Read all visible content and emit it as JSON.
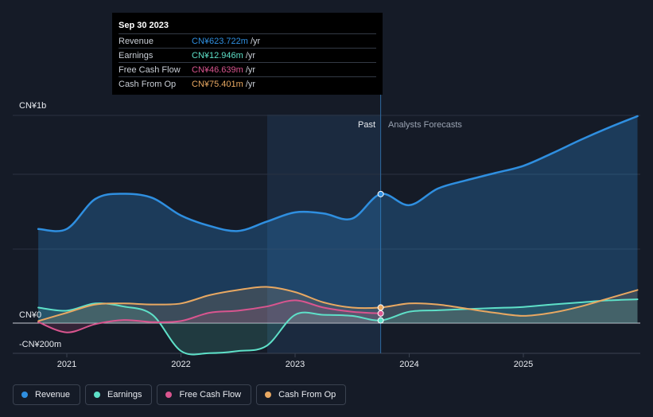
{
  "tooltip": {
    "date": "Sep 30 2023",
    "rows": [
      {
        "label": "Revenue",
        "value": "CN¥623.722m",
        "unit": "/yr",
        "color": "#2f8fe0"
      },
      {
        "label": "Earnings",
        "value": "CN¥12.946m",
        "unit": "/yr",
        "color": "#5ee0c8"
      },
      {
        "label": "Free Cash Flow",
        "value": "CN¥46.639m",
        "unit": "/yr",
        "color": "#d9558f"
      },
      {
        "label": "Cash From Op",
        "value": "CN¥75.401m",
        "unit": "/yr",
        "color": "#e8a862"
      }
    ]
  },
  "chart_data": {
    "type": "line",
    "y_axis_labels": {
      "top": "CN¥1b",
      "zero": "CN¥0",
      "bottom": "-CN¥200m"
    },
    "x_ticks": [
      "2021",
      "2022",
      "2023",
      "2024",
      "2025"
    ],
    "x_range": [
      2020.75,
      2026.0
    ],
    "ylim": [
      -200,
      1000
    ],
    "past_label": "Past",
    "forecast_label": "Analysts Forecasts",
    "split_x": 2023.75,
    "series": [
      {
        "name": "Revenue",
        "color": "#2f8fe0",
        "points": [
          [
            2020.75,
            455
          ],
          [
            2021.0,
            455
          ],
          [
            2021.25,
            600
          ],
          [
            2021.5,
            625
          ],
          [
            2021.75,
            605
          ],
          [
            2022.0,
            520
          ],
          [
            2022.25,
            470
          ],
          [
            2022.5,
            445
          ],
          [
            2022.75,
            490
          ],
          [
            2023.0,
            535
          ],
          [
            2023.25,
            530
          ],
          [
            2023.5,
            505
          ],
          [
            2023.75,
            623.7
          ],
          [
            2024.0,
            570
          ],
          [
            2024.25,
            650
          ],
          [
            2024.5,
            690
          ],
          [
            2024.75,
            725
          ],
          [
            2025.0,
            760
          ],
          [
            2025.25,
            820
          ],
          [
            2025.5,
            885
          ],
          [
            2025.75,
            945
          ],
          [
            2026.0,
            1000
          ]
        ]
      },
      {
        "name": "Earnings",
        "color": "#5ee0c8",
        "points": [
          [
            2020.75,
            75
          ],
          [
            2021.0,
            60
          ],
          [
            2021.25,
            95
          ],
          [
            2021.5,
            80
          ],
          [
            2021.75,
            40
          ],
          [
            2022.0,
            -135
          ],
          [
            2022.25,
            -145
          ],
          [
            2022.5,
            -135
          ],
          [
            2022.75,
            -110
          ],
          [
            2023.0,
            40
          ],
          [
            2023.25,
            40
          ],
          [
            2023.5,
            35
          ],
          [
            2023.75,
            12.9
          ],
          [
            2024.0,
            55
          ],
          [
            2024.25,
            62
          ],
          [
            2024.5,
            68
          ],
          [
            2024.75,
            73
          ],
          [
            2025.0,
            78
          ],
          [
            2025.25,
            90
          ],
          [
            2025.5,
            100
          ],
          [
            2025.75,
            110
          ],
          [
            2026.0,
            115
          ]
        ]
      },
      {
        "name": "Free Cash Flow",
        "color": "#d9558f",
        "points": [
          [
            2020.75,
            5
          ],
          [
            2021.0,
            -45
          ],
          [
            2021.25,
            -5
          ],
          [
            2021.5,
            15
          ],
          [
            2021.75,
            5
          ],
          [
            2022.0,
            10
          ],
          [
            2022.25,
            50
          ],
          [
            2022.5,
            60
          ],
          [
            2022.75,
            80
          ],
          [
            2023.0,
            110
          ],
          [
            2023.25,
            75
          ],
          [
            2023.5,
            55
          ],
          [
            2023.75,
            46.6
          ]
        ]
      },
      {
        "name": "Cash From Op",
        "color": "#e8a862",
        "points": [
          [
            2020.75,
            10
          ],
          [
            2021.0,
            50
          ],
          [
            2021.25,
            90
          ],
          [
            2021.5,
            95
          ],
          [
            2021.75,
            90
          ],
          [
            2022.0,
            95
          ],
          [
            2022.25,
            135
          ],
          [
            2022.5,
            160
          ],
          [
            2022.75,
            175
          ],
          [
            2023.0,
            150
          ],
          [
            2023.25,
            100
          ],
          [
            2023.5,
            75
          ],
          [
            2023.75,
            75.4
          ],
          [
            2024.0,
            95
          ],
          [
            2024.25,
            90
          ],
          [
            2024.5,
            70
          ],
          [
            2024.75,
            50
          ],
          [
            2025.0,
            35
          ],
          [
            2025.25,
            50
          ],
          [
            2025.5,
            80
          ],
          [
            2025.75,
            120
          ],
          [
            2026.0,
            160
          ]
        ]
      }
    ]
  },
  "legend": [
    {
      "label": "Revenue",
      "color": "#2f8fe0"
    },
    {
      "label": "Earnings",
      "color": "#5ee0c8"
    },
    {
      "label": "Free Cash Flow",
      "color": "#d9558f"
    },
    {
      "label": "Cash From Op",
      "color": "#e8a862"
    }
  ]
}
